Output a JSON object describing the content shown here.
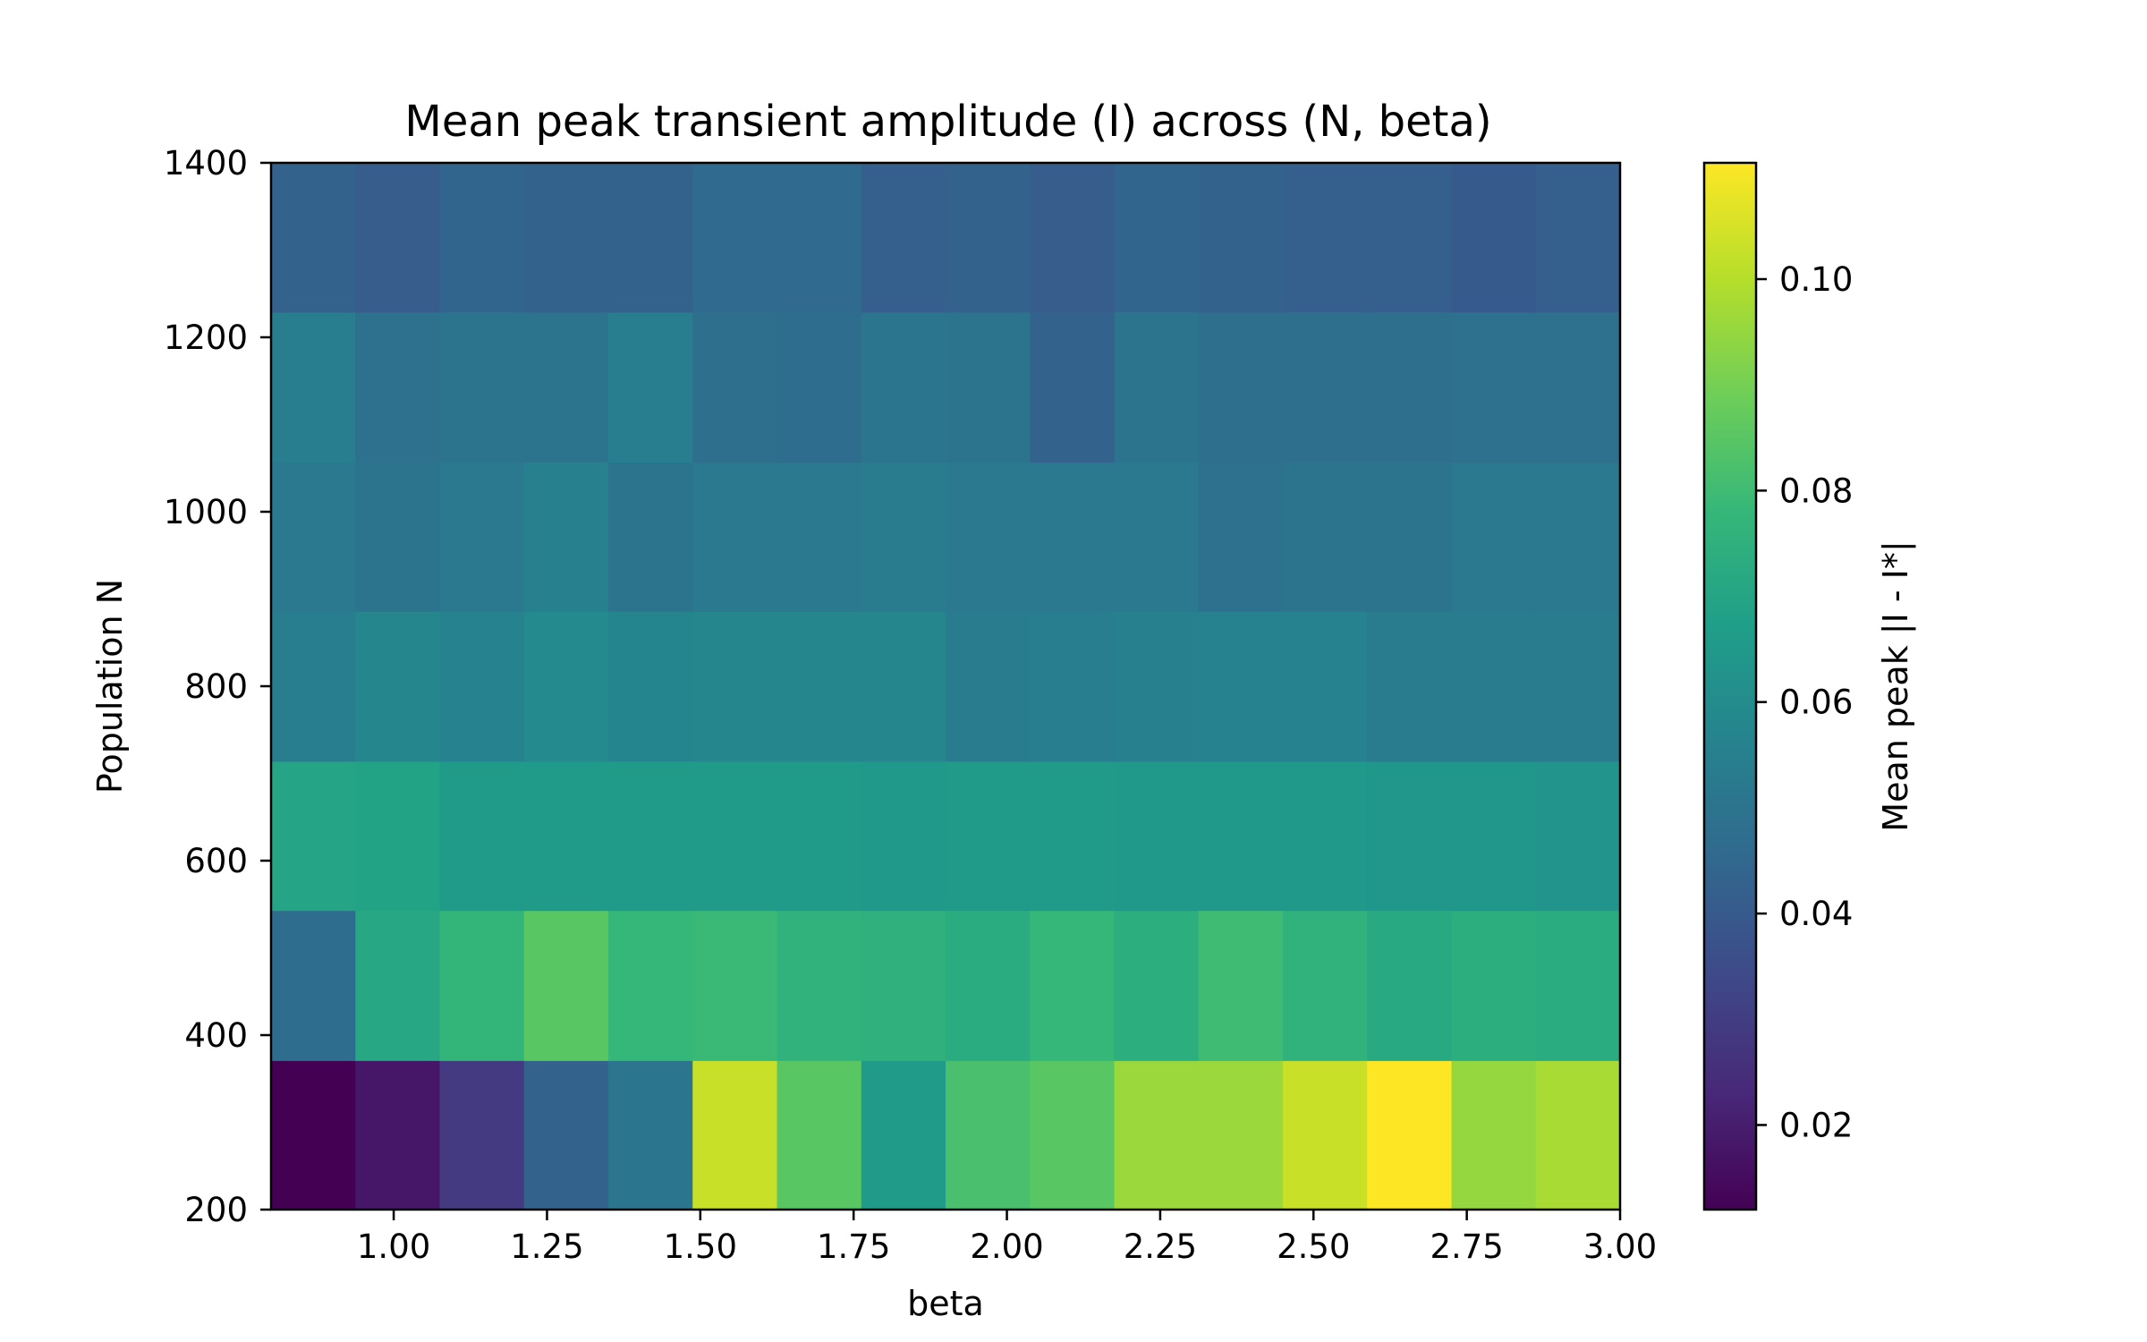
{
  "chart_data": {
    "type": "heatmap",
    "title": "Mean peak transient amplitude (I) across (N, beta)",
    "xlabel": "beta",
    "ylabel": "Population N",
    "xlim": [
      0.8,
      3.0
    ],
    "ylim": [
      200,
      1400
    ],
    "x_ticks": [
      1.0,
      1.25,
      1.5,
      1.75,
      2.0,
      2.25,
      2.5,
      2.75,
      3.0
    ],
    "x_tick_labels": [
      "1.00",
      "1.25",
      "1.50",
      "1.75",
      "2.00",
      "2.25",
      "2.50",
      "2.75",
      "3.00"
    ],
    "y_ticks": [
      200,
      400,
      600,
      800,
      1000,
      1200,
      1400
    ],
    "y_tick_labels": [
      "200",
      "400",
      "600",
      "800",
      "1000",
      "1200",
      "1400"
    ],
    "beta_edges": [
      0.8,
      0.9375,
      1.075,
      1.2125,
      1.35,
      1.4875,
      1.625,
      1.7625,
      1.9,
      2.0375,
      2.175,
      2.3125,
      2.45,
      2.5875,
      2.725,
      2.8625,
      3.0
    ],
    "n_edges": [
      200,
      371,
      543,
      714,
      886,
      1057,
      1229,
      1400
    ],
    "colorbar": {
      "label": "Mean peak |I - I*|",
      "vmin": 0.012,
      "vmax": 0.111,
      "ticks": [
        0.02,
        0.04,
        0.06,
        0.08,
        0.1
      ],
      "tick_labels": [
        "0.02",
        "0.04",
        "0.06",
        "0.08",
        "0.10"
      ],
      "colormap": [
        "#440154",
        "#482878",
        "#3e4989",
        "#31688e",
        "#26828e",
        "#1f9e89",
        "#35b779",
        "#6ece58",
        "#b5de2b",
        "#fde725"
      ]
    },
    "rows": [
      {
        "n_range": [
          200,
          371
        ],
        "values": [
          0.012,
          0.018,
          0.029,
          0.043,
          0.051,
          0.103,
          0.085,
          0.066,
          0.082,
          0.085,
          0.096,
          0.096,
          0.103,
          0.111,
          0.095,
          0.098
        ]
      },
      {
        "n_range": [
          371,
          543
        ],
        "values": [
          0.047,
          0.071,
          0.077,
          0.085,
          0.078,
          0.079,
          0.076,
          0.075,
          0.073,
          0.078,
          0.074,
          0.08,
          0.076,
          0.072,
          0.074,
          0.073
        ]
      },
      {
        "n_range": [
          543,
          714
        ],
        "values": [
          0.07,
          0.069,
          0.066,
          0.066,
          0.066,
          0.066,
          0.066,
          0.065,
          0.066,
          0.066,
          0.065,
          0.065,
          0.065,
          0.064,
          0.064,
          0.063
        ]
      },
      {
        "n_range": [
          714,
          886
        ],
        "values": [
          0.054,
          0.058,
          0.056,
          0.059,
          0.057,
          0.058,
          0.058,
          0.058,
          0.053,
          0.054,
          0.055,
          0.056,
          0.056,
          0.053,
          0.053,
          0.053
        ]
      },
      {
        "n_range": [
          886,
          1057
        ],
        "values": [
          0.052,
          0.05,
          0.052,
          0.055,
          0.05,
          0.052,
          0.052,
          0.053,
          0.052,
          0.052,
          0.052,
          0.049,
          0.05,
          0.05,
          0.052,
          0.052
        ]
      },
      {
        "n_range": [
          1057,
          1229
        ],
        "values": [
          0.054,
          0.049,
          0.05,
          0.05,
          0.054,
          0.048,
          0.047,
          0.051,
          0.05,
          0.043,
          0.05,
          0.048,
          0.048,
          0.048,
          0.049,
          0.049
        ]
      },
      {
        "n_range": [
          1229,
          1400
        ],
        "values": [
          0.043,
          0.041,
          0.044,
          0.043,
          0.043,
          0.046,
          0.046,
          0.042,
          0.043,
          0.041,
          0.044,
          0.043,
          0.042,
          0.042,
          0.04,
          0.042
        ]
      }
    ]
  }
}
